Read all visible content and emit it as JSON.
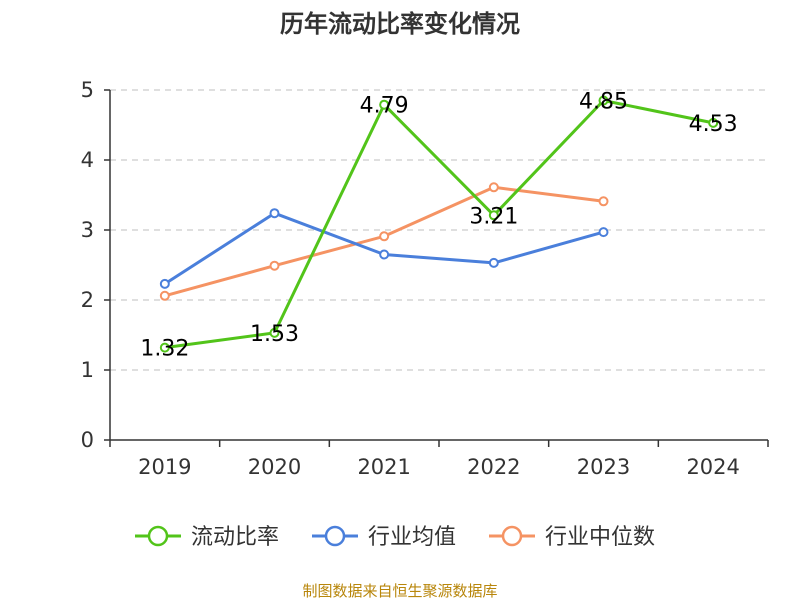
{
  "chart_data": {
    "type": "line",
    "title": "历年流动比率变化情况",
    "categories": [
      "2019",
      "2020",
      "2021",
      "2022",
      "2023",
      "2024"
    ],
    "ylim": [
      0,
      5
    ],
    "yticks": [
      0,
      1,
      2,
      3,
      4,
      5
    ],
    "grid": "horizontal-dashed",
    "legend_position": "bottom",
    "series": [
      {
        "name": "流动比率",
        "color": "#52c41a",
        "values": [
          1.32,
          1.53,
          4.79,
          3.21,
          4.85,
          4.53
        ],
        "labels": [
          "1.32",
          "1.53",
          "4.79",
          "3.21",
          "4.85",
          "4.53"
        ]
      },
      {
        "name": "行业均值",
        "color": "#4a7fdb",
        "values": [
          2.23,
          3.24,
          2.65,
          2.53,
          2.97,
          null
        ]
      },
      {
        "name": "行业中位数",
        "color": "#f59363",
        "values": [
          2.06,
          2.49,
          2.91,
          3.61,
          3.41,
          null
        ]
      }
    ]
  },
  "footer": "制图数据来自恒生聚源数据库"
}
